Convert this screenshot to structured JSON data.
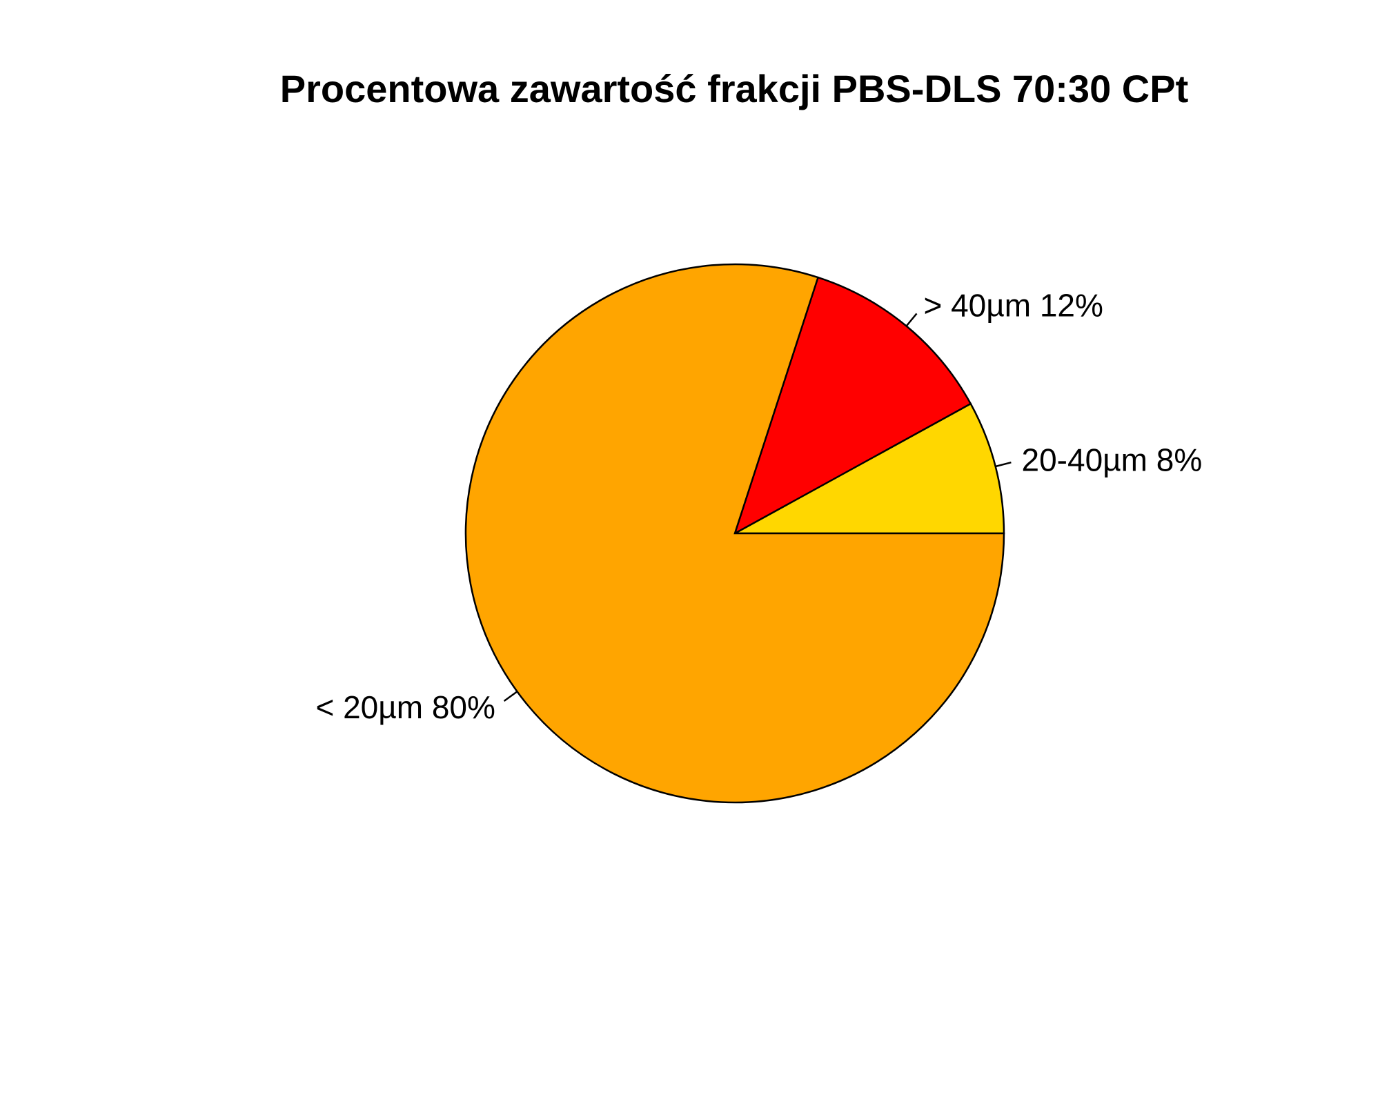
{
  "chart_data": {
    "type": "pie",
    "title": "Procentowa zawartość frakcji PBS-DLS 70:30 CPt",
    "slices": [
      {
        "label": "20-40µm 8%",
        "category": "20-40µm",
        "value": 8,
        "color": "#FFD700"
      },
      {
        "label": "> 40µm 12%",
        "category": "> 40µm",
        "value": 12,
        "color": "#FF0000"
      },
      {
        "label": "< 20µm 80%",
        "category": "< 20µm",
        "value": 80,
        "color": "#FFA500"
      }
    ],
    "start_angle_deg": 0,
    "direction": "counterclockwise",
    "legend": "none"
  }
}
